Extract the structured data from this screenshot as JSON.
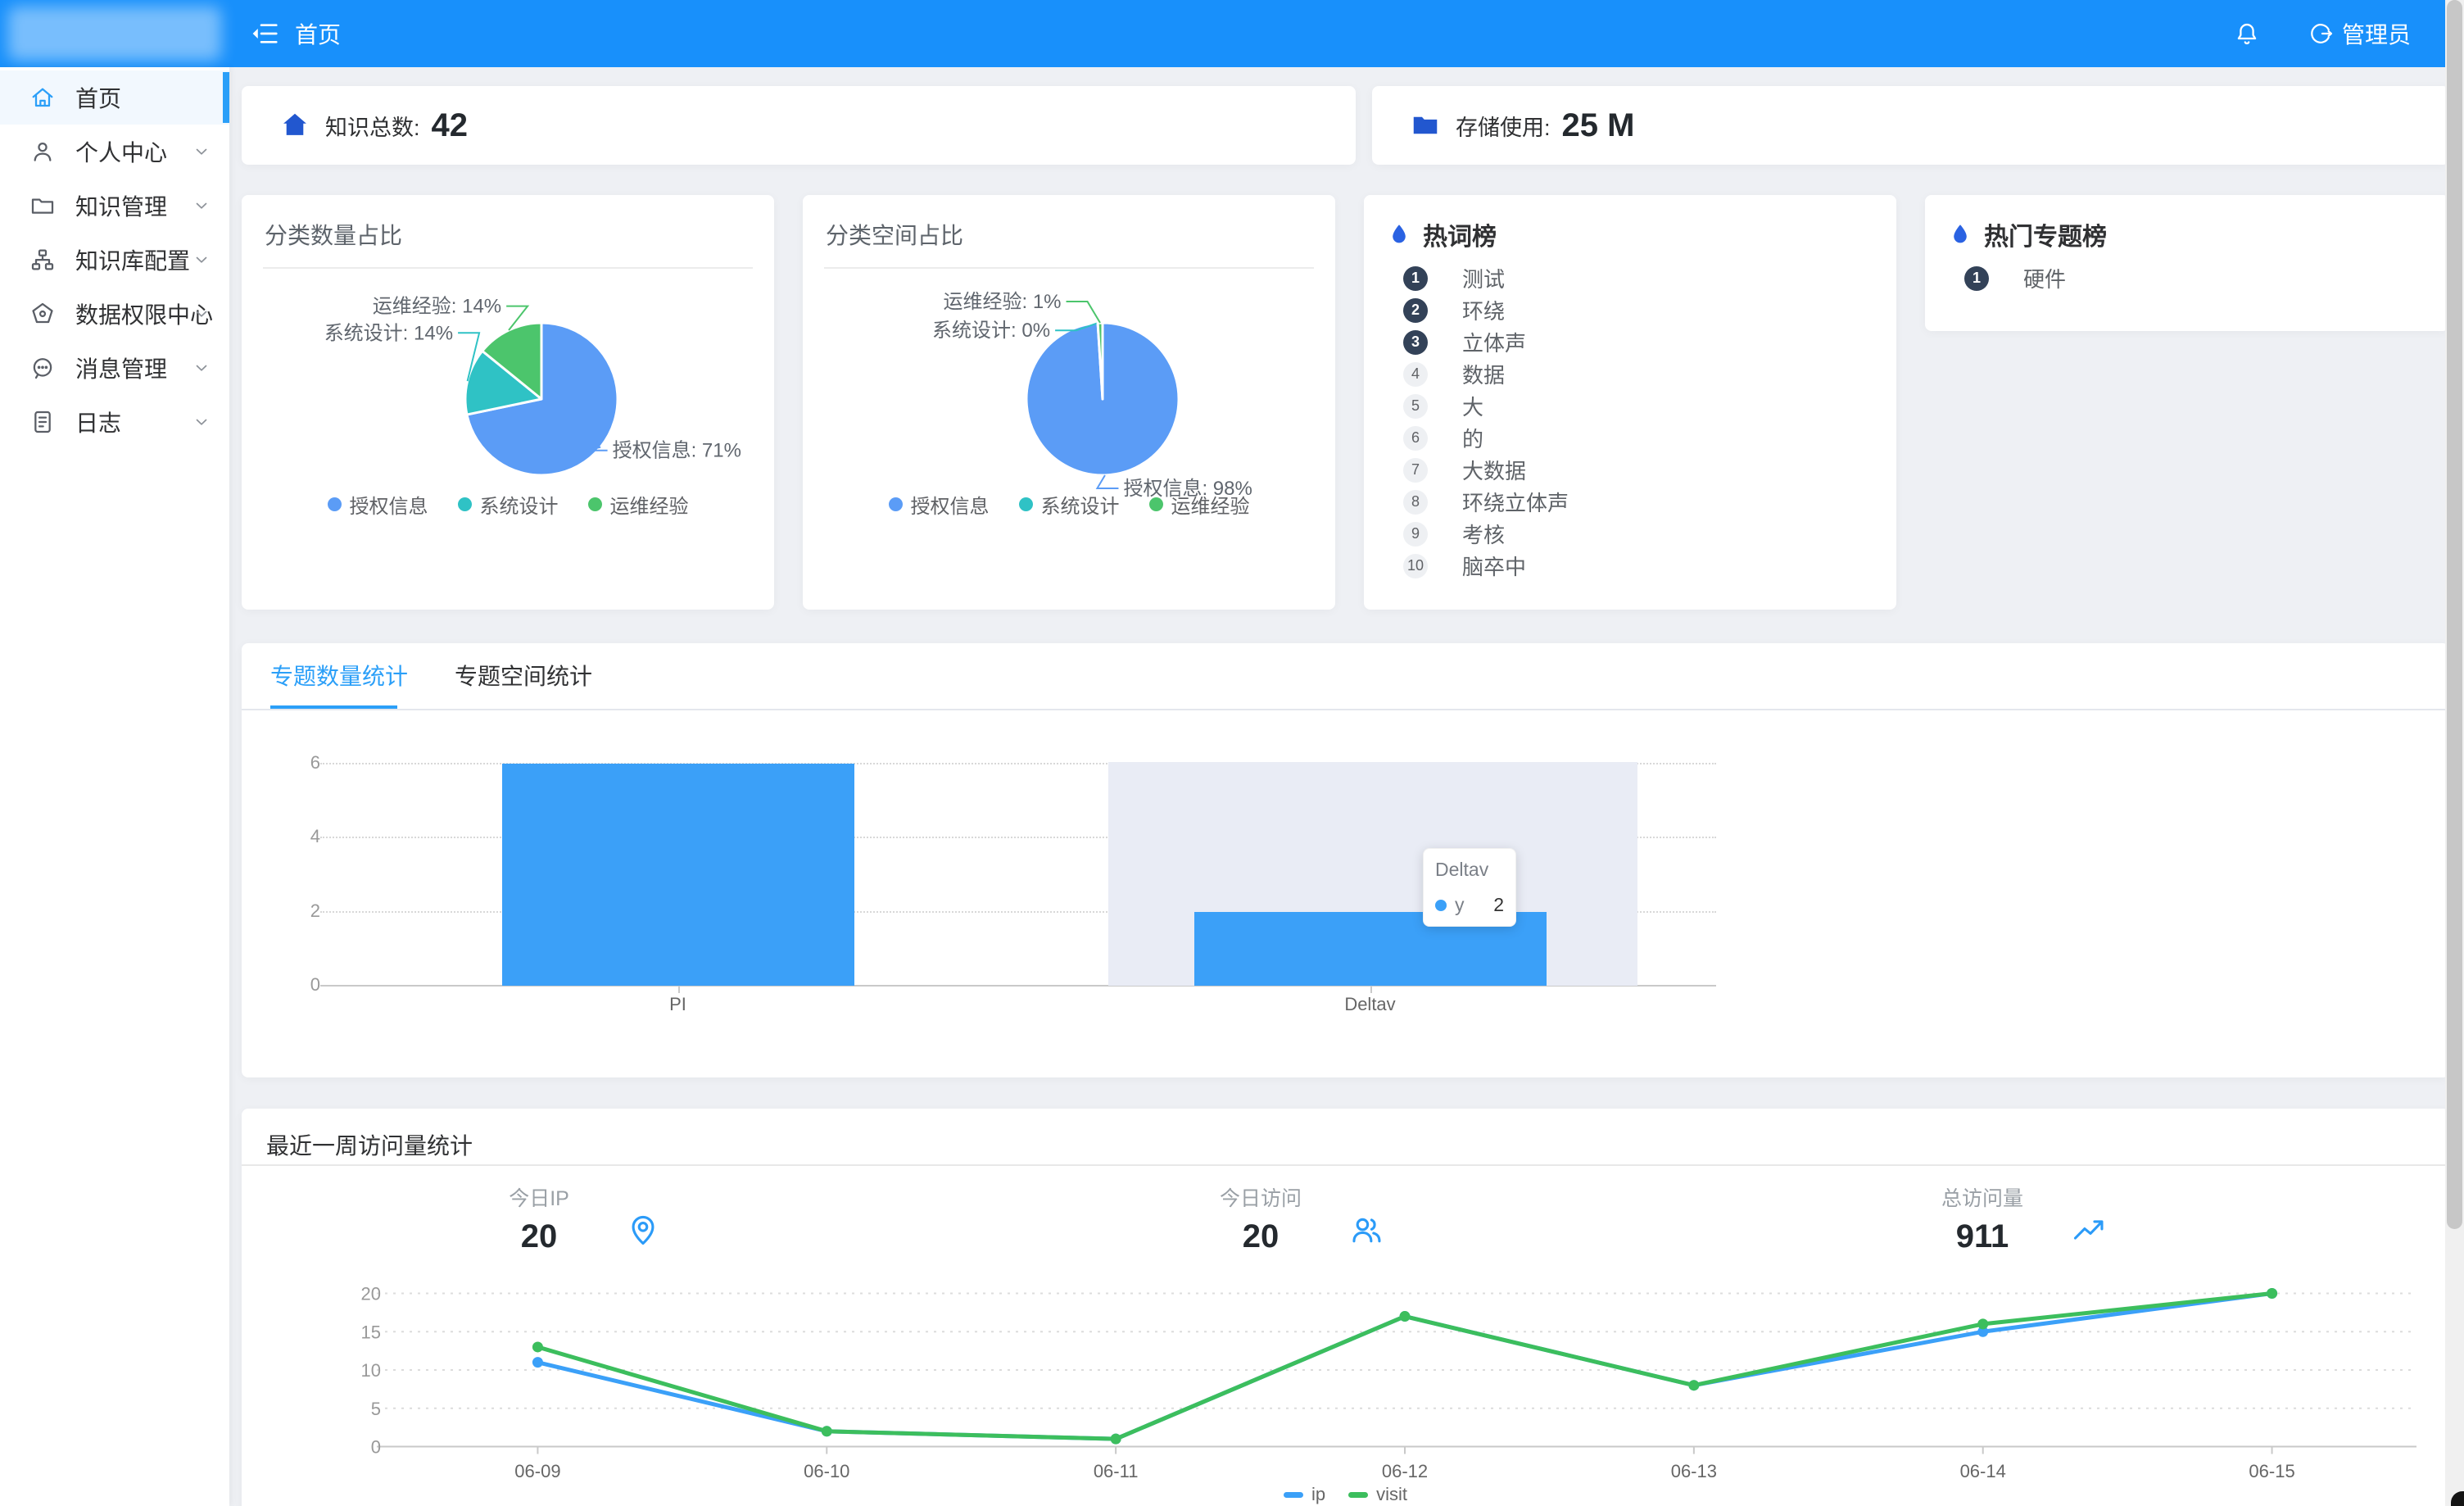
{
  "theme": {
    "navbar_bg": "#1890fb",
    "primary": "#2b9ff8",
    "dark_badge": "#334258",
    "flame": "#2a62e2",
    "stat_icon": "#2257cf",
    "bar_blue": "#3ba0f8"
  },
  "navbar": {
    "breadcrumb": "首页",
    "admin_label": "管理员",
    "icons": [
      "collapse-menu-icon",
      "bell-icon",
      "admin-user-icon"
    ]
  },
  "sidebar": {
    "items": [
      {
        "key": "home",
        "label": "首页",
        "icon": "home-icon",
        "active": true,
        "expandable": false
      },
      {
        "key": "profile",
        "label": "个人中心",
        "icon": "person-icon",
        "active": false,
        "expandable": true
      },
      {
        "key": "knowledge-manage",
        "label": "知识管理",
        "icon": "folder-icon",
        "active": false,
        "expandable": true
      },
      {
        "key": "kb-config",
        "label": "知识库配置",
        "icon": "sitemap-icon",
        "active": false,
        "expandable": true
      },
      {
        "key": "data-permission",
        "label": "数据权限中心",
        "icon": "pentagon-icon",
        "active": false,
        "expandable": true
      },
      {
        "key": "message-manage",
        "label": "消息管理",
        "icon": "message-icon",
        "active": false,
        "expandable": true
      },
      {
        "key": "log",
        "label": "日志",
        "icon": "log-icon",
        "active": false,
        "expandable": true
      }
    ]
  },
  "overview": {
    "cards": [
      {
        "icon": "home-solid-icon",
        "label": "知识总数:",
        "value": "42"
      },
      {
        "icon": "folder-solid-icon",
        "label": "存储使用:",
        "value": "25 M"
      }
    ]
  },
  "hot_words": {
    "title": "热词榜",
    "icon": "flame-icon",
    "items": [
      {
        "rank": 1,
        "word": "测试"
      },
      {
        "rank": 2,
        "word": "环绕"
      },
      {
        "rank": 3,
        "word": "立体声"
      },
      {
        "rank": 4,
        "word": "数据"
      },
      {
        "rank": 5,
        "word": "大"
      },
      {
        "rank": 6,
        "word": "的"
      },
      {
        "rank": 7,
        "word": "大数据"
      },
      {
        "rank": 8,
        "word": "环绕立体声"
      },
      {
        "rank": 9,
        "word": "考核"
      },
      {
        "rank": 10,
        "word": "脑卒中"
      }
    ]
  },
  "hot_topics": {
    "title": "热门专题榜",
    "icon": "flame-icon",
    "items": [
      {
        "rank": 1,
        "word": "硬件"
      }
    ]
  },
  "topic_stats": {
    "tabs": [
      {
        "label": "专题数量统计",
        "active": true
      },
      {
        "label": "专题空间统计",
        "active": false
      }
    ]
  },
  "visits": {
    "title": "最近一周访问量统计",
    "stats": [
      {
        "label": "今日IP",
        "value": "20",
        "icon": "pin-icon"
      },
      {
        "label": "今日访问",
        "value": "20",
        "icon": "people-icon"
      },
      {
        "label": "总访问量",
        "value": "911",
        "icon": "trend-icon"
      }
    ]
  },
  "chart_data": [
    {
      "id": "category-count-pie",
      "type": "pie",
      "title": "分类数量占比",
      "categories": [
        "授权信息",
        "系统设计",
        "运维经验"
      ],
      "values": [
        71,
        14,
        14
      ],
      "unit": "%",
      "labels": [
        "授权信息: 71%",
        "系统设计: 14%",
        "运维经验: 14%"
      ],
      "colors": [
        "#5b9cf6",
        "#2fc2c5",
        "#4cc56c"
      ],
      "legend_position": "bottom"
    },
    {
      "id": "category-space-pie",
      "type": "pie",
      "title": "分类空间占比",
      "categories": [
        "授权信息",
        "系统设计",
        "运维经验"
      ],
      "values": [
        98,
        0,
        1
      ],
      "unit": "%",
      "labels": [
        "授权信息: 98%",
        "系统设计: 0%",
        "运维经验: 1%"
      ],
      "colors": [
        "#5b9cf6",
        "#2fc2c5",
        "#4cc56c"
      ],
      "legend_position": "bottom"
    },
    {
      "id": "topic-count-bar",
      "type": "bar",
      "categories": [
        "PI",
        "Deltav"
      ],
      "values": [
        6,
        2
      ],
      "ylim": [
        0,
        6
      ],
      "yticks": [
        0,
        2,
        4,
        6
      ],
      "grid": true,
      "bar_color": "#3ba0f8",
      "highlight_category": "Deltav",
      "tooltip": {
        "title": "Deltav",
        "series_label": "y",
        "value": 2
      }
    },
    {
      "id": "weekly-visit-line",
      "type": "line",
      "x": [
        "06-09",
        "06-10",
        "06-11",
        "06-12",
        "06-13",
        "06-14",
        "06-15"
      ],
      "series": [
        {
          "name": "ip",
          "color": "#3ba0f8",
          "values": [
            11,
            2,
            1,
            17,
            8,
            15,
            20
          ]
        },
        {
          "name": "visit",
          "color": "#3cbe5d",
          "values": [
            13,
            2,
            1,
            17,
            8,
            16,
            20
          ]
        }
      ],
      "ylim": [
        0,
        20
      ],
      "yticks": [
        0,
        5,
        10,
        15,
        20
      ],
      "grid": true,
      "legend_position": "bottom"
    }
  ]
}
